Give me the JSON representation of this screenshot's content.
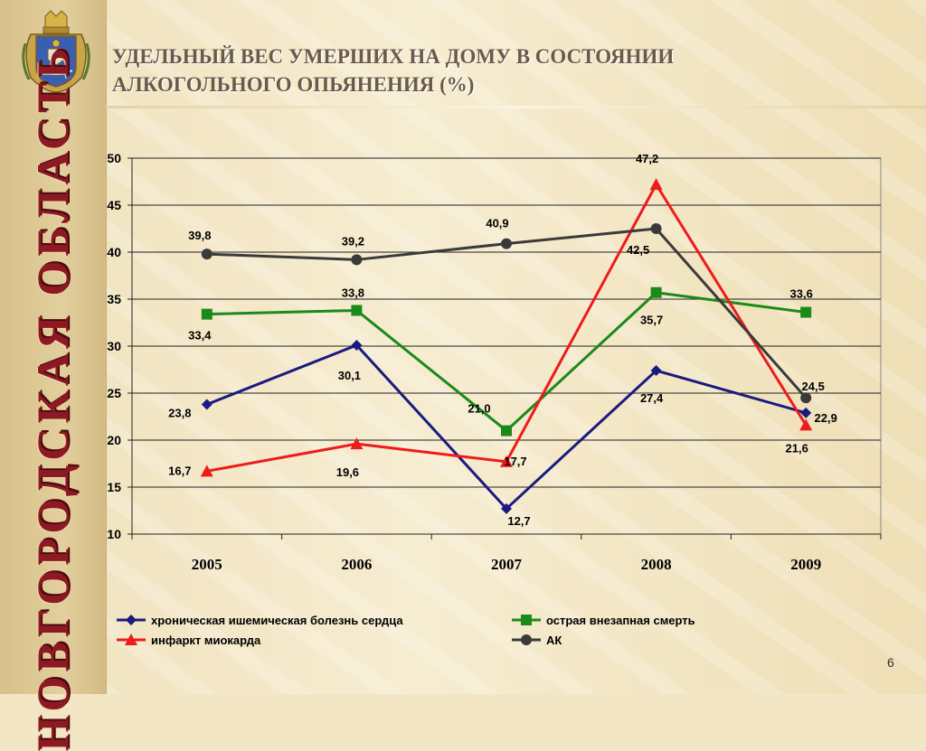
{
  "region_label": "НОВГОРОДСКАЯ ОБЛАСТЬ",
  "title_line1": "УДЕЛЬНЫЙ ВЕС УМЕРШИХ НА ДОМУ В СОСТОЯНИИ",
  "title_line2": "АЛКОГОЛЬНОГО ОПЬЯНЕНИЯ (%)",
  "page_number": "6",
  "chart_data": {
    "type": "line",
    "title": "УДЕЛЬНЫЙ ВЕС УМЕРШИХ НА ДОМУ В СОСТОЯНИИ АЛКОГОЛЬНОГО ОПЬЯНЕНИЯ (%)",
    "categories": [
      "2005",
      "2006",
      "2007",
      "2008",
      "2009"
    ],
    "ylim": [
      10,
      50
    ],
    "yticks": [
      10,
      15,
      20,
      25,
      30,
      35,
      40,
      45,
      50
    ],
    "grid": true,
    "legend_position": "bottom",
    "series": [
      {
        "name": "хроническая ишемическая болезнь сердца",
        "values": [
          23.8,
          30.1,
          12.7,
          27.4,
          22.9
        ],
        "labels": [
          "23,8",
          "30,1",
          "12,7",
          "27,4",
          "22,9"
        ],
        "color": "#1a1a80",
        "marker": "diamond"
      },
      {
        "name": "острая внезапная смерть",
        "values": [
          33.4,
          33.8,
          21.0,
          35.7,
          33.6
        ],
        "labels": [
          "33,4",
          "33,8",
          "21,0",
          "35,7",
          "33,6"
        ],
        "color": "#1b8a1b",
        "marker": "square"
      },
      {
        "name": "инфаркт миокарда",
        "values": [
          16.7,
          19.6,
          17.7,
          47.2,
          21.6
        ],
        "labels": [
          "16,7",
          "19,6",
          "17,7",
          "47,2",
          "21,6"
        ],
        "color": "#ee1b1b",
        "marker": "triangle"
      },
      {
        "name": "АК",
        "values": [
          39.8,
          39.2,
          40.9,
          42.5,
          24.5
        ],
        "labels": [
          "39,8",
          "39,2",
          "40,9",
          "42,5",
          "24,5"
        ],
        "color": "#3a3a3a",
        "marker": "circle"
      }
    ]
  }
}
